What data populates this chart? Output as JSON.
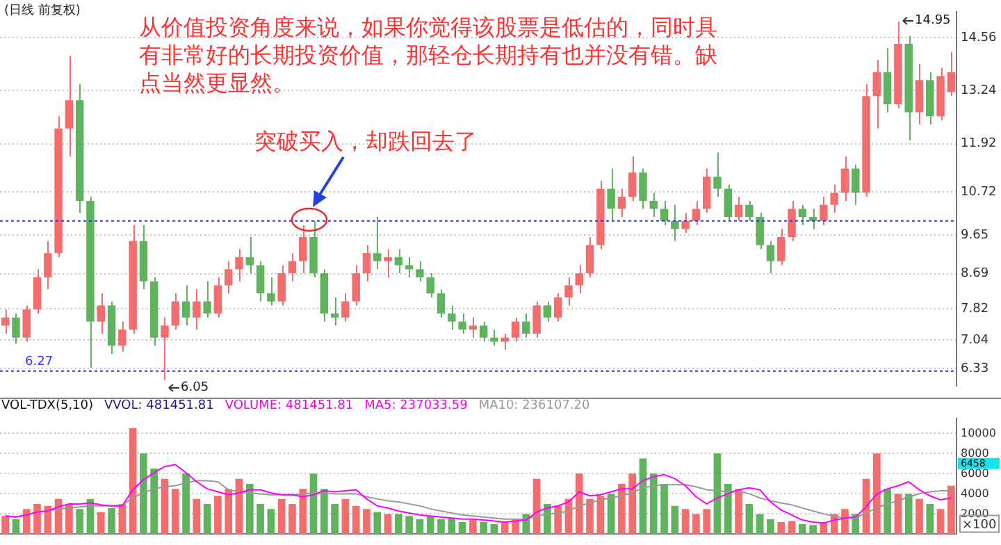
{
  "chart_data": [
    {
      "type": "candlestick",
      "title": "(日线 前复权)",
      "categories": [
        null,
        null,
        null,
        null,
        null,
        null,
        null,
        null,
        null,
        null,
        null,
        null,
        null,
        null,
        null,
        null,
        null,
        null,
        null,
        null,
        null,
        null,
        null,
        null,
        null,
        null,
        null,
        null,
        null,
        null,
        null,
        null,
        null,
        null,
        null,
        null,
        null,
        null,
        null,
        null,
        null,
        null,
        null,
        null,
        null,
        null,
        null,
        null,
        null,
        null,
        null,
        null,
        null,
        null,
        null,
        null,
        null,
        null,
        null,
        null,
        null,
        null,
        null,
        null,
        null,
        null,
        null,
        null,
        null,
        null,
        null,
        null,
        null,
        null,
        null,
        null,
        null,
        null,
        null,
        null,
        null,
        null,
        null,
        null,
        null,
        null,
        null,
        null,
        null,
        null
      ],
      "ohlc": [
        [
          7.4,
          7.8,
          7.2,
          7.6
        ],
        [
          7.6,
          7.7,
          6.95,
          7.1
        ],
        [
          7.1,
          7.9,
          7.0,
          7.8
        ],
        [
          7.8,
          8.8,
          7.7,
          8.6
        ],
        [
          8.6,
          9.5,
          8.3,
          9.2
        ],
        [
          9.2,
          12.6,
          9.1,
          12.3
        ],
        [
          12.3,
          14.1,
          11.6,
          13.0
        ],
        [
          13.0,
          13.4,
          10.2,
          10.5
        ],
        [
          10.5,
          10.6,
          6.35,
          7.5
        ],
        [
          7.5,
          8.2,
          7.2,
          7.9
        ],
        [
          7.9,
          8.0,
          6.7,
          6.9
        ],
        [
          6.9,
          7.5,
          6.75,
          7.3
        ],
        [
          7.3,
          9.9,
          7.2,
          9.5
        ],
        [
          9.5,
          9.9,
          8.3,
          8.5
        ],
        [
          8.5,
          8.6,
          6.9,
          7.1
        ],
        [
          7.1,
          7.6,
          6.05,
          7.4
        ],
        [
          7.4,
          8.2,
          7.3,
          8.0
        ],
        [
          8.0,
          8.4,
          7.4,
          7.6
        ],
        [
          7.6,
          8.3,
          7.3,
          8.0
        ],
        [
          8.0,
          8.5,
          7.6,
          7.7
        ],
        [
          7.7,
          8.6,
          7.6,
          8.4
        ],
        [
          8.4,
          9.0,
          8.2,
          8.8
        ],
        [
          8.8,
          9.3,
          8.5,
          9.1
        ],
        [
          9.1,
          9.6,
          8.7,
          8.9
        ],
        [
          8.9,
          9.0,
          8.0,
          8.2
        ],
        [
          8.2,
          8.6,
          7.9,
          8.0
        ],
        [
          8.0,
          8.9,
          7.9,
          8.7
        ],
        [
          8.7,
          9.2,
          8.5,
          9.0
        ],
        [
          9.0,
          9.9,
          8.7,
          9.6
        ],
        [
          9.6,
          10.0,
          8.6,
          8.7
        ],
        [
          8.7,
          8.8,
          7.5,
          7.7
        ],
        [
          7.7,
          8.1,
          7.4,
          7.6
        ],
        [
          7.6,
          8.2,
          7.5,
          8.0
        ],
        [
          8.0,
          8.9,
          7.9,
          8.7
        ],
        [
          8.7,
          9.4,
          8.5,
          9.2
        ],
        [
          9.2,
          10.1,
          8.8,
          9.0
        ],
        [
          9.0,
          9.3,
          8.6,
          9.1
        ],
        [
          9.1,
          9.3,
          8.7,
          8.9
        ],
        [
          8.9,
          9.1,
          8.6,
          8.8
        ],
        [
          8.8,
          9.0,
          8.5,
          8.6
        ],
        [
          8.6,
          8.7,
          8.1,
          8.2
        ],
        [
          8.2,
          8.3,
          7.6,
          7.7
        ],
        [
          7.7,
          7.9,
          7.3,
          7.5
        ],
        [
          7.5,
          7.7,
          7.2,
          7.3
        ],
        [
          7.3,
          7.6,
          7.1,
          7.4
        ],
        [
          7.4,
          7.5,
          7.0,
          7.1
        ],
        [
          7.1,
          7.3,
          6.9,
          7.0
        ],
        [
          7.0,
          7.2,
          6.8,
          7.1
        ],
        [
          7.1,
          7.6,
          7.0,
          7.5
        ],
        [
          7.5,
          7.7,
          7.1,
          7.2
        ],
        [
          7.2,
          8.0,
          7.1,
          7.9
        ],
        [
          7.9,
          8.0,
          7.5,
          7.6
        ],
        [
          7.6,
          8.2,
          7.5,
          8.1
        ],
        [
          8.1,
          8.6,
          7.9,
          8.4
        ],
        [
          8.4,
          8.9,
          8.2,
          8.7
        ],
        [
          8.7,
          9.6,
          8.6,
          9.4
        ],
        [
          9.4,
          11.0,
          9.3,
          10.8
        ],
        [
          10.8,
          11.3,
          10.0,
          10.3
        ],
        [
          10.3,
          10.8,
          10.1,
          10.6
        ],
        [
          10.6,
          11.6,
          10.5,
          11.2
        ],
        [
          11.2,
          11.3,
          10.3,
          10.5
        ],
        [
          10.5,
          10.7,
          10.1,
          10.3
        ],
        [
          10.3,
          10.5,
          9.9,
          10.0
        ],
        [
          10.0,
          10.4,
          9.5,
          9.8
        ],
        [
          9.8,
          10.2,
          9.7,
          10.0
        ],
        [
          10.0,
          10.5,
          9.9,
          10.3
        ],
        [
          10.3,
          11.3,
          10.2,
          11.1
        ],
        [
          11.1,
          11.7,
          10.6,
          10.8
        ],
        [
          10.8,
          10.9,
          10.0,
          10.1
        ],
        [
          10.1,
          10.6,
          10.0,
          10.4
        ],
        [
          10.4,
          10.5,
          10.0,
          10.1
        ],
        [
          10.1,
          10.2,
          9.3,
          9.4
        ],
        [
          9.4,
          9.5,
          8.7,
          9.0
        ],
        [
          9.0,
          9.8,
          8.9,
          9.6
        ],
        [
          9.6,
          10.5,
          9.5,
          10.3
        ],
        [
          10.3,
          10.4,
          9.9,
          10.1
        ],
        [
          10.1,
          10.3,
          9.8,
          10.0
        ],
        [
          10.0,
          10.6,
          9.9,
          10.4
        ],
        [
          10.4,
          10.9,
          10.2,
          10.7
        ],
        [
          10.7,
          11.6,
          10.5,
          11.3
        ],
        [
          11.3,
          11.4,
          10.4,
          10.7
        ],
        [
          10.7,
          13.4,
          10.6,
          13.1
        ],
        [
          13.1,
          14.0,
          12.3,
          13.7
        ],
        [
          13.7,
          14.3,
          12.7,
          12.9
        ],
        [
          12.9,
          14.95,
          12.8,
          14.4
        ],
        [
          14.4,
          14.6,
          12.0,
          12.7
        ],
        [
          12.7,
          13.9,
          12.4,
          13.5
        ],
        [
          13.5,
          13.7,
          12.4,
          12.6
        ],
        [
          12.6,
          13.8,
          12.5,
          13.6
        ],
        [
          13.2,
          14.2,
          13.1,
          13.7
        ]
      ],
      "colors": [
        "#f26d6d",
        "#5fb35f",
        "#f26d6d",
        "#f26d6d",
        "#f26d6d",
        "#f26d6d",
        "#f26d6d",
        "#5fb35f",
        "#5fb35f",
        "#f26d6d",
        "#5fb35f",
        "#f26d6d",
        "#f26d6d",
        "#5fb35f",
        "#5fb35f",
        "#f26d6d",
        "#f26d6d",
        "#5fb35f",
        "#f26d6d",
        "#5fb35f",
        "#f26d6d",
        "#f26d6d",
        "#f26d6d",
        "#5fb35f",
        "#5fb35f",
        "#5fb35f",
        "#f26d6d",
        "#f26d6d",
        "#f26d6d",
        "#5fb35f",
        "#5fb35f",
        "#5fb35f",
        "#f26d6d",
        "#f26d6d",
        "#f26d6d",
        "#5fb35f",
        "#f26d6d",
        "#5fb35f",
        "#5fb35f",
        "#5fb35f",
        "#5fb35f",
        "#5fb35f",
        "#5fb35f",
        "#5fb35f",
        "#f26d6d",
        "#5fb35f",
        "#5fb35f",
        "#f26d6d",
        "#f26d6d",
        "#5fb35f",
        "#f26d6d",
        "#5fb35f",
        "#f26d6d",
        "#f26d6d",
        "#f26d6d",
        "#f26d6d",
        "#f26d6d",
        "#5fb35f",
        "#f26d6d",
        "#f26d6d",
        "#5fb35f",
        "#5fb35f",
        "#5fb35f",
        "#5fb35f",
        "#f26d6d",
        "#f26d6d",
        "#f26d6d",
        "#5fb35f",
        "#5fb35f",
        "#f26d6d",
        "#5fb35f",
        "#5fb35f",
        "#5fb35f",
        "#f26d6d",
        "#f26d6d",
        "#5fb35f",
        "#5fb35f",
        "#f26d6d",
        "#f26d6d",
        "#f26d6d",
        "#5fb35f",
        "#f26d6d",
        "#f26d6d",
        "#5fb35f",
        "#f26d6d",
        "#5fb35f",
        "#f26d6d",
        "#5fb35f",
        "#f26d6d",
        "#f26d6d"
      ],
      "ylim": [
        5.9,
        15.2
      ],
      "yticks": [
        6.33,
        7.04,
        7.82,
        8.69,
        9.65,
        10.72,
        11.92,
        13.24,
        14.56
      ],
      "grid": "y",
      "tick_labels": "y",
      "ref_lines": [
        {
          "axis": "y",
          "value": 6.27,
          "label": "6.27",
          "color": "#3333ff",
          "line_style": "dotted"
        },
        {
          "axis": "y",
          "value": 10.0,
          "color": "#3333ff",
          "line_style": "dotted"
        }
      ],
      "annotations": [
        "从价值投资角度来说，如果你觉得该股票是低估的，同时具有非常好的长期投资价值，那轻仓长期持有也并没有错。缺点当然更显然。",
        "突破买入，却跌回去了",
        "6.05",
        "14.95"
      ]
    },
    {
      "type": "bar",
      "title": "VOL-TDX(5,10)",
      "ylabel": "×100",
      "categories": [
        null,
        null,
        null,
        null,
        null,
        null,
        null,
        null,
        null,
        null,
        null,
        null,
        null,
        null,
        null,
        null,
        null,
        null,
        null,
        null,
        null,
        null,
        null,
        null,
        null,
        null,
        null,
        null,
        null,
        null,
        null,
        null,
        null,
        null,
        null,
        null,
        null,
        null,
        null,
        null,
        null,
        null,
        null,
        null,
        null,
        null,
        null,
        null,
        null,
        null,
        null,
        null,
        null,
        null,
        null,
        null,
        null,
        null,
        null,
        null,
        null,
        null,
        null,
        null,
        null,
        null,
        null,
        null,
        null,
        null,
        null,
        null,
        null,
        null,
        null,
        null,
        null,
        null,
        null,
        null,
        null,
        null,
        null,
        null,
        null,
        null,
        null,
        null,
        null,
        null
      ],
      "series": [
        {
          "type": "bar",
          "colors": [
            "#f26d6d",
            "#5fb35f",
            "#f26d6d",
            "#f26d6d",
            "#f26d6d",
            "#f26d6d",
            "#f26d6d",
            "#5fb35f",
            "#5fb35f",
            "#f26d6d",
            "#5fb35f",
            "#f26d6d",
            "#f26d6d",
            "#5fb35f",
            "#5fb35f",
            "#f26d6d",
            "#f26d6d",
            "#5fb35f",
            "#f26d6d",
            "#5fb35f",
            "#f26d6d",
            "#f26d6d",
            "#f26d6d",
            "#5fb35f",
            "#5fb35f",
            "#5fb35f",
            "#f26d6d",
            "#f26d6d",
            "#f26d6d",
            "#5fb35f",
            "#5fb35f",
            "#5fb35f",
            "#f26d6d",
            "#f26d6d",
            "#f26d6d",
            "#5fb35f",
            "#f26d6d",
            "#5fb35f",
            "#5fb35f",
            "#5fb35f",
            "#5fb35f",
            "#5fb35f",
            "#5fb35f",
            "#5fb35f",
            "#f26d6d",
            "#5fb35f",
            "#5fb35f",
            "#f26d6d",
            "#f26d6d",
            "#5fb35f",
            "#f26d6d",
            "#5fb35f",
            "#f26d6d",
            "#f26d6d",
            "#f26d6d",
            "#f26d6d",
            "#f26d6d",
            "#5fb35f",
            "#f26d6d",
            "#f26d6d",
            "#5fb35f",
            "#5fb35f",
            "#5fb35f",
            "#5fb35f",
            "#f26d6d",
            "#f26d6d",
            "#f26d6d",
            "#5fb35f",
            "#5fb35f",
            "#f26d6d",
            "#5fb35f",
            "#5fb35f",
            "#5fb35f",
            "#f26d6d",
            "#f26d6d",
            "#5fb35f",
            "#5fb35f",
            "#f26d6d",
            "#f26d6d",
            "#f26d6d",
            "#5fb35f",
            "#f26d6d",
            "#f26d6d",
            "#5fb35f",
            "#f26d6d",
            "#5fb35f",
            "#f26d6d",
            "#5fb35f",
            "#f26d6d",
            "#f26d6d"
          ],
          "values": [
            1800,
            1500,
            2500,
            3000,
            2800,
            3500,
            3000,
            2500,
            3500,
            2200,
            2600,
            3000,
            10500,
            8000,
            6500,
            5500,
            4500,
            6000,
            3500,
            3000,
            3800,
            4500,
            5500,
            5000,
            3000,
            2500,
            3500,
            3000,
            4500,
            6000,
            4500,
            3000,
            3500,
            2800,
            2500,
            2200,
            2000,
            2000,
            1800,
            1500,
            1800,
            1500,
            1600,
            1200,
            1400,
            1200,
            1000,
            1200,
            1500,
            2000,
            5500,
            3000,
            2800,
            3500,
            6000,
            3500,
            3800,
            4000,
            5000,
            6000,
            7500,
            6000,
            5000,
            2800,
            2500,
            2000,
            2500,
            8000,
            5000,
            4500,
            3000,
            2000,
            1500,
            1200,
            1300,
            1000,
            900,
            1200,
            2000,
            2500,
            2000,
            5500,
            8000,
            4500,
            4000,
            4000,
            3500,
            3000,
            2500,
            4800
          ]
        },
        {
          "type": "line",
          "name": "MA5: 237033.59",
          "color": "#ff00ff",
          "values": [
            1800,
            1700,
            1900,
            2200,
            2300,
            2700,
            3000,
            3000,
            3100,
            2900,
            2800,
            2800,
            4400,
            5400,
            6100,
            6700,
            6900,
            6100,
            5200,
            4500,
            4200,
            3900,
            4100,
            4400,
            4400,
            4100,
            3900,
            3900,
            3700,
            3900,
            4300,
            4200,
            4300,
            4400,
            3500,
            2800,
            2600,
            2300,
            2100,
            1900,
            1800,
            1700,
            1600,
            1500,
            1500,
            1400,
            1300,
            1200,
            1300,
            1400,
            2200,
            2600,
            2800,
            3200,
            4200,
            3800,
            3900,
            4200,
            4500,
            4500,
            5300,
            5700,
            5900,
            5500,
            4800,
            3700,
            3000,
            3600,
            4000,
            4400,
            4600,
            4400,
            3200,
            2400,
            1900,
            1400,
            1200,
            1100,
            1400,
            1600,
            1700,
            2700,
            4000,
            4500,
            4800,
            5200,
            4400,
            3800,
            3400,
            3600
          ]
        },
        {
          "type": "line",
          "name": "MA10: 236107.20",
          "color": "#999999",
          "values": [
            1800,
            1700,
            1900,
            2200,
            2300,
            2500,
            2600,
            2700,
            2800,
            2800,
            2800,
            2900,
            3600,
            4100,
            4500,
            4700,
            4800,
            5100,
            5300,
            5300,
            5200,
            4400,
            4200,
            4100,
            4000,
            3900,
            3900,
            3900,
            4000,
            4100,
            4100,
            4000,
            4000,
            4000,
            3700,
            3500,
            3300,
            3200,
            3000,
            2800,
            2500,
            2300,
            2100,
            1900,
            1800,
            1700,
            1600,
            1500,
            1500,
            1500,
            1800,
            2000,
            2100,
            2300,
            2800,
            3100,
            3400,
            3600,
            3800,
            4100,
            4600,
            4800,
            4900,
            4900,
            4900,
            4700,
            4400,
            4300,
            4200,
            4300,
            4000,
            3600,
            3300,
            3100,
            2900,
            2600,
            2300,
            2000,
            1800,
            1600,
            1600,
            2100,
            2600,
            3000,
            3300,
            3700,
            4000,
            4200,
            4300,
            4300
          ]
        }
      ],
      "ylim": [
        0,
        11500
      ],
      "yticks": [
        2000,
        4000,
        6000,
        8000,
        10000
      ],
      "grid": "y",
      "tick_labels": "y",
      "legend": "top left",
      "marker": "none",
      "line_style": "solid",
      "annotations": [
        "VVOL: 481451.81",
        "VOLUME: 481451.81",
        "6458"
      ]
    }
  ]
}
